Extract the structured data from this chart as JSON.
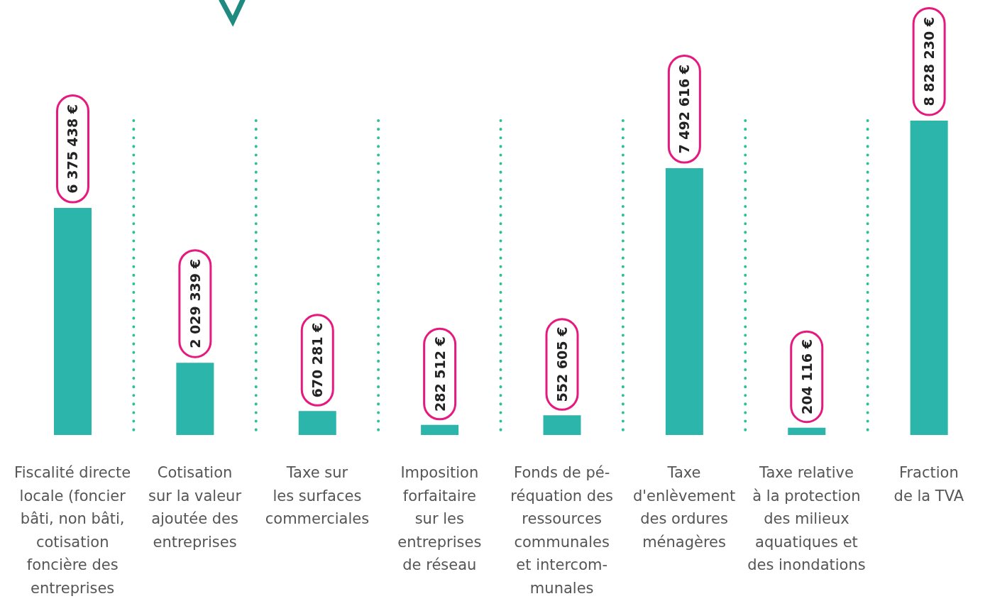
{
  "chart_data": {
    "type": "bar",
    "categories": [
      "Fiscalité directe\nlocale (foncier\nbâti, non bâti,\ncotisation\nfoncière des\nentreprises",
      "Cotisation\nsur la valeur\najoutée des\nentreprises",
      "Taxe sur\nles surfaces\ncommerciales",
      "Imposition\nforfaitaire\nsur les\nentreprises\nde réseau",
      "Fonds de pé-\nréquation des\nressources\ncommunales\net intercom-\nmunales",
      "Taxe\nd'enlèvement\ndes ordures\nménagères",
      "Taxe relative\nà la protection\ndes milieux\naquatiques et\ndes inondations",
      "Fraction\nde la TVA"
    ],
    "values": [
      6375438,
      2029339,
      670281,
      282512,
      552605,
      7492616,
      204116,
      8828230
    ],
    "value_labels": [
      "6 375 438 €",
      "2 029 339 €",
      "670 281 €",
      "282 512 €",
      "552 605 €",
      "7 492 616 €",
      "204 116 €",
      "8 828 230 €"
    ],
    "color": "#2bb5ab",
    "grid": "x"
  }
}
